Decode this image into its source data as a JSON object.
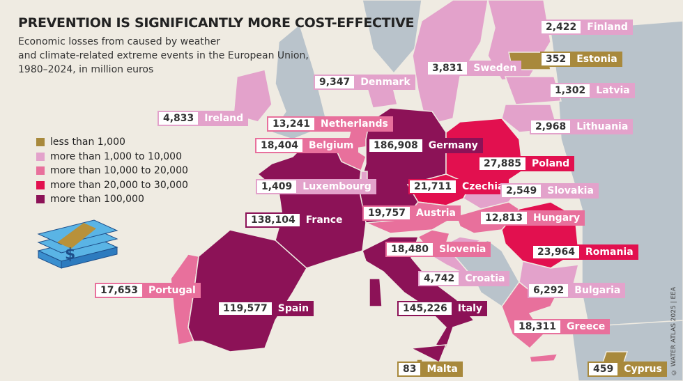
{
  "header": {
    "title": "PREVENTION IS SIGNIFICANTLY MORE COST-EFFECTIVE",
    "subtitle": [
      "Economic losses from caused by weather",
      "and climate-related extreme events in the European Union,",
      "1980–2024, in million euros"
    ]
  },
  "legend": [
    {
      "label": "less than 1,000",
      "color": "#a8893c"
    },
    {
      "label": "more than 1,000 to 10,000",
      "color": "#e3a2cb"
    },
    {
      "label": "more than 10,000 to 20,000",
      "color": "#e8709c"
    },
    {
      "label": "more than 20,000 to 30,000",
      "color": "#e2104f"
    },
    {
      "label": "more than 100,000",
      "color": "#8c1257"
    }
  ],
  "countries": [
    {
      "name": "Finland",
      "value": "2,422",
      "color": "#e3a2cb"
    },
    {
      "name": "Estonia",
      "value": "352",
      "color": "#a8893c"
    },
    {
      "name": "Sweden",
      "value": "3,831",
      "color": "#e3a2cb"
    },
    {
      "name": "Denmark",
      "value": "9,347",
      "color": "#e3a2cb"
    },
    {
      "name": "Latvia",
      "value": "1,302",
      "color": "#e3a2cb"
    },
    {
      "name": "Ireland",
      "value": "4,833",
      "color": "#e3a2cb"
    },
    {
      "name": "Netherlands",
      "value": "13,241",
      "color": "#e8709c"
    },
    {
      "name": "Lithuania",
      "value": "2,968",
      "color": "#e3a2cb"
    },
    {
      "name": "Belgium",
      "value": "18,404",
      "color": "#e8709c"
    },
    {
      "name": "Germany",
      "value": "186,908",
      "color": "#8c1257"
    },
    {
      "name": "Poland",
      "value": "27,885",
      "color": "#e2104f"
    },
    {
      "name": "Luxembourg",
      "value": "1,409",
      "color": "#e3a2cb"
    },
    {
      "name": "Czechia",
      "value": "21,711",
      "color": "#e2104f"
    },
    {
      "name": "Slovakia",
      "value": "2,549",
      "color": "#e3a2cb"
    },
    {
      "name": "Austria",
      "value": "19,757",
      "color": "#e8709c"
    },
    {
      "name": "Hungary",
      "value": "12,813",
      "color": "#e8709c"
    },
    {
      "name": "France",
      "value": "138,104",
      "color": "#8c1257"
    },
    {
      "name": "Slovenia",
      "value": "18,480",
      "color": "#e8709c"
    },
    {
      "name": "Romania",
      "value": "23,964",
      "color": "#e2104f"
    },
    {
      "name": "Croatia",
      "value": "4,742",
      "color": "#e3a2cb"
    },
    {
      "name": "Portugal",
      "value": "17,653",
      "color": "#e8709c"
    },
    {
      "name": "Bulgaria",
      "value": "6,292",
      "color": "#e3a2cb"
    },
    {
      "name": "Spain",
      "value": "119,577",
      "color": "#8c1257"
    },
    {
      "name": "Italy",
      "value": "145,226",
      "color": "#8c1257"
    },
    {
      "name": "Greece",
      "value": "18,311",
      "color": "#e8709c"
    },
    {
      "name": "Malta",
      "value": "83",
      "color": "#a8893c"
    },
    {
      "name": "Cyprus",
      "value": "459",
      "color": "#a8893c"
    }
  ],
  "credit": "© WATER ATLAS 2025 | EEA"
}
